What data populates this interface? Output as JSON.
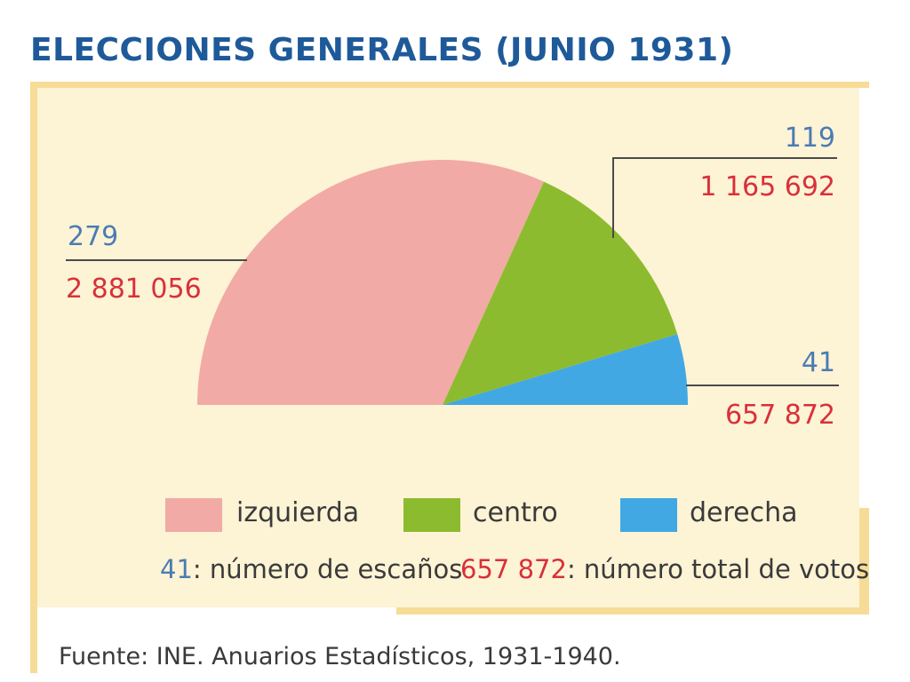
{
  "title": "ELECCIONES GENERALES (JUNIO 1931)",
  "colors": {
    "title": "#1e5a99",
    "seats": "#4a7cb3",
    "votes": "#d9303a",
    "panel": "#fdf3d5",
    "frame": "#f6dc96"
  },
  "chart_data": {
    "type": "pie",
    "shape": "semicircle",
    "series": [
      {
        "name": "izquierda",
        "seats": 279,
        "seats_label": "279",
        "votes_label": "2 881 056",
        "color": "#f2aaa6"
      },
      {
        "name": "centro",
        "seats": 119,
        "seats_label": "119",
        "votes_label": "1 165 692",
        "color": "#8dbb2f"
      },
      {
        "name": "derecha",
        "seats": 41,
        "seats_label": "41",
        "votes_label": "657 872",
        "color": "#41a8e3"
      }
    ]
  },
  "legend": {
    "items": [
      {
        "label": "izquierda",
        "color": "#f2aaa6"
      },
      {
        "label": "centro",
        "color": "#8dbb2f"
      },
      {
        "label": "derecha",
        "color": "#41a8e3"
      }
    ],
    "seats_example": "41",
    "seats_text": ": número de escaños",
    "votes_example": "657 872",
    "votes_text": ": número total de votos"
  },
  "source": "Fuente: INE. Anuarios Estadísticos, 1931-1940."
}
